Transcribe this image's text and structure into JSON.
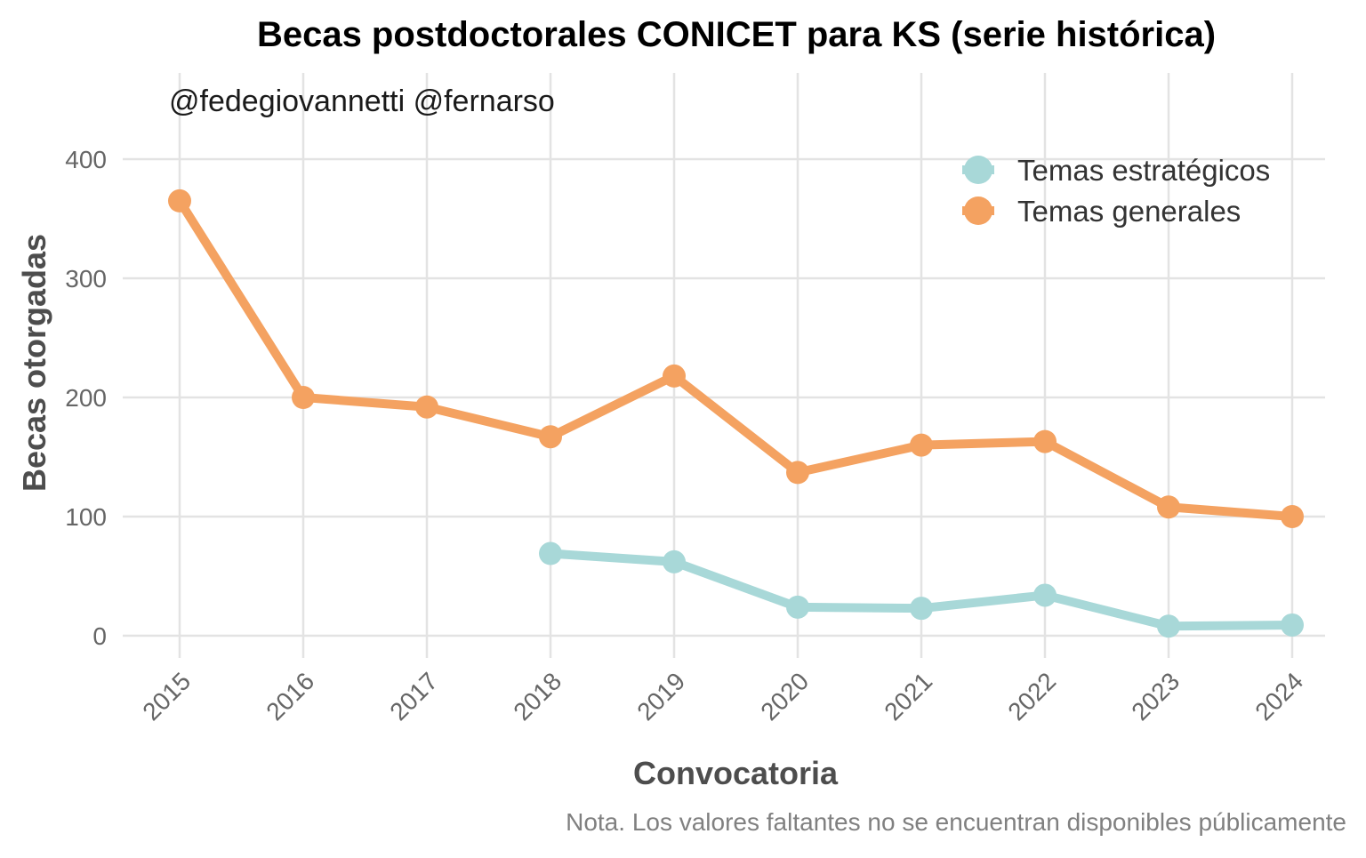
{
  "chart_data": {
    "type": "line",
    "title": "Becas postdoctorales CONICET para KS (serie histórica)",
    "annotation": "@fedegiovannetti @fernarso",
    "xlabel": "Convocatoria",
    "ylabel": "Becas otorgadas",
    "caption": "Nota. Los valores faltantes no se encuentran disponibles públicamente",
    "x": [
      "2015",
      "2016",
      "2017",
      "2018",
      "2019",
      "2020",
      "2021",
      "2022",
      "2023",
      "2024"
    ],
    "ylim": [
      0,
      400
    ],
    "yticks": [
      "0",
      "100",
      "200",
      "300",
      "400"
    ],
    "grid": true,
    "legend_position": "top-right",
    "series": [
      {
        "name": "Temas estratégicos",
        "color": "#a8d8d8",
        "values": [
          null,
          null,
          null,
          69,
          62,
          24,
          23,
          34,
          8,
          9
        ]
      },
      {
        "name": "Temas generales",
        "color": "#f4a261",
        "values": [
          365,
          200,
          192,
          167,
          218,
          137,
          160,
          163,
          108,
          100
        ]
      }
    ]
  }
}
